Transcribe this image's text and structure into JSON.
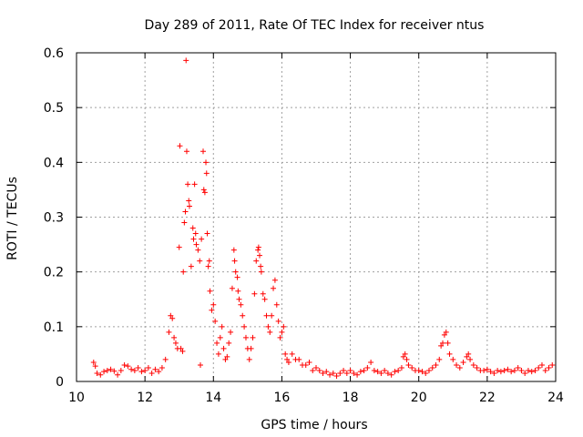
{
  "chart_data": {
    "type": "scatter",
    "title": "Day 289 of 2011, Rate Of TEC Index for receiver ntus",
    "xlabel": "GPS time / hours",
    "ylabel": "ROTI / TECUs",
    "xlim": [
      10,
      24
    ],
    "ylim": [
      0,
      0.6
    ],
    "xticks": [
      10,
      12,
      14,
      16,
      18,
      20,
      22,
      24
    ],
    "yticks": [
      0,
      0.1,
      0.2,
      0.3,
      0.4,
      0.5,
      0.6
    ],
    "xtick_labels": [
      "10",
      "12",
      "14",
      "16",
      "18",
      "20",
      "22",
      "24"
    ],
    "ytick_labels": [
      "0",
      "0.1",
      "0.2",
      "0.3",
      "0.4",
      "0.5",
      "0.6"
    ],
    "grid": true,
    "marker": "+",
    "color": "#ff0000",
    "series": [
      {
        "name": "ROTI",
        "points": [
          [
            10.5,
            0.035
          ],
          [
            10.55,
            0.028
          ],
          [
            10.6,
            0.015
          ],
          [
            10.7,
            0.012
          ],
          [
            10.8,
            0.018
          ],
          [
            10.9,
            0.02
          ],
          [
            11.0,
            0.022
          ],
          [
            11.1,
            0.019
          ],
          [
            11.2,
            0.012
          ],
          [
            11.3,
            0.02
          ],
          [
            11.4,
            0.03
          ],
          [
            11.5,
            0.028
          ],
          [
            11.6,
            0.022
          ],
          [
            11.7,
            0.02
          ],
          [
            11.8,
            0.025
          ],
          [
            11.9,
            0.018
          ],
          [
            12.0,
            0.02
          ],
          [
            12.1,
            0.025
          ],
          [
            12.2,
            0.015
          ],
          [
            12.3,
            0.022
          ],
          [
            12.4,
            0.018
          ],
          [
            12.5,
            0.025
          ],
          [
            12.6,
            0.04
          ],
          [
            12.7,
            0.09
          ],
          [
            12.75,
            0.12
          ],
          [
            12.8,
            0.115
          ],
          [
            12.85,
            0.08
          ],
          [
            12.9,
            0.07
          ],
          [
            12.95,
            0.06
          ],
          [
            13.0,
            0.245
          ],
          [
            13.02,
            0.43
          ],
          [
            13.05,
            0.06
          ],
          [
            13.1,
            0.055
          ],
          [
            13.12,
            0.2
          ],
          [
            13.15,
            0.29
          ],
          [
            13.18,
            0.31
          ],
          [
            13.2,
            0.586
          ],
          [
            13.22,
            0.42
          ],
          [
            13.25,
            0.36
          ],
          [
            13.28,
            0.33
          ],
          [
            13.3,
            0.32
          ],
          [
            13.35,
            0.21
          ],
          [
            13.4,
            0.28
          ],
          [
            13.42,
            0.26
          ],
          [
            13.45,
            0.36
          ],
          [
            13.48,
            0.27
          ],
          [
            13.5,
            0.25
          ],
          [
            13.55,
            0.24
          ],
          [
            13.6,
            0.22
          ],
          [
            13.62,
            0.03
          ],
          [
            13.65,
            0.26
          ],
          [
            13.7,
            0.42
          ],
          [
            13.72,
            0.35
          ],
          [
            13.75,
            0.345
          ],
          [
            13.78,
            0.4
          ],
          [
            13.8,
            0.38
          ],
          [
            13.82,
            0.27
          ],
          [
            13.85,
            0.21
          ],
          [
            13.88,
            0.22
          ],
          [
            13.9,
            0.165
          ],
          [
            13.95,
            0.13
          ],
          [
            14.0,
            0.14
          ],
          [
            14.05,
            0.11
          ],
          [
            14.1,
            0.07
          ],
          [
            14.15,
            0.05
          ],
          [
            14.2,
            0.08
          ],
          [
            14.25,
            0.1
          ],
          [
            14.3,
            0.06
          ],
          [
            14.35,
            0.04
          ],
          [
            14.4,
            0.045
          ],
          [
            14.45,
            0.07
          ],
          [
            14.5,
            0.09
          ],
          [
            14.55,
            0.17
          ],
          [
            14.6,
            0.24
          ],
          [
            14.62,
            0.22
          ],
          [
            14.65,
            0.2
          ],
          [
            14.7,
            0.19
          ],
          [
            14.72,
            0.165
          ],
          [
            14.75,
            0.15
          ],
          [
            14.8,
            0.14
          ],
          [
            14.85,
            0.12
          ],
          [
            14.9,
            0.1
          ],
          [
            14.95,
            0.08
          ],
          [
            15.0,
            0.06
          ],
          [
            15.05,
            0.04
          ],
          [
            15.1,
            0.06
          ],
          [
            15.15,
            0.08
          ],
          [
            15.2,
            0.16
          ],
          [
            15.25,
            0.22
          ],
          [
            15.3,
            0.24
          ],
          [
            15.32,
            0.245
          ],
          [
            15.35,
            0.23
          ],
          [
            15.38,
            0.21
          ],
          [
            15.4,
            0.2
          ],
          [
            15.45,
            0.16
          ],
          [
            15.5,
            0.15
          ],
          [
            15.55,
            0.12
          ],
          [
            15.6,
            0.1
          ],
          [
            15.65,
            0.09
          ],
          [
            15.7,
            0.12
          ],
          [
            15.75,
            0.17
          ],
          [
            15.8,
            0.185
          ],
          [
            15.85,
            0.14
          ],
          [
            15.9,
            0.11
          ],
          [
            15.95,
            0.08
          ],
          [
            16.0,
            0.09
          ],
          [
            16.05,
            0.1
          ],
          [
            16.1,
            0.05
          ],
          [
            16.15,
            0.04
          ],
          [
            16.2,
            0.035
          ],
          [
            16.3,
            0.05
          ],
          [
            16.4,
            0.04
          ],
          [
            16.5,
            0.04
          ],
          [
            16.6,
            0.03
          ],
          [
            16.7,
            0.03
          ],
          [
            16.8,
            0.035
          ],
          [
            16.9,
            0.02
          ],
          [
            17.0,
            0.025
          ],
          [
            17.1,
            0.02
          ],
          [
            17.2,
            0.015
          ],
          [
            17.3,
            0.018
          ],
          [
            17.4,
            0.012
          ],
          [
            17.5,
            0.015
          ],
          [
            17.6,
            0.01
          ],
          [
            17.7,
            0.015
          ],
          [
            17.8,
            0.02
          ],
          [
            17.9,
            0.015
          ],
          [
            18.0,
            0.02
          ],
          [
            18.1,
            0.015
          ],
          [
            18.2,
            0.012
          ],
          [
            18.3,
            0.018
          ],
          [
            18.4,
            0.02
          ],
          [
            18.5,
            0.025
          ],
          [
            18.6,
            0.035
          ],
          [
            18.7,
            0.02
          ],
          [
            18.8,
            0.018
          ],
          [
            18.9,
            0.015
          ],
          [
            19.0,
            0.02
          ],
          [
            19.1,
            0.015
          ],
          [
            19.2,
            0.012
          ],
          [
            19.3,
            0.018
          ],
          [
            19.4,
            0.02
          ],
          [
            19.5,
            0.025
          ],
          [
            19.55,
            0.045
          ],
          [
            19.6,
            0.05
          ],
          [
            19.65,
            0.04
          ],
          [
            19.7,
            0.03
          ],
          [
            19.8,
            0.025
          ],
          [
            19.9,
            0.02
          ],
          [
            20.0,
            0.02
          ],
          [
            20.1,
            0.018
          ],
          [
            20.2,
            0.015
          ],
          [
            20.3,
            0.02
          ],
          [
            20.4,
            0.025
          ],
          [
            20.5,
            0.03
          ],
          [
            20.6,
            0.04
          ],
          [
            20.65,
            0.065
          ],
          [
            20.7,
            0.07
          ],
          [
            20.75,
            0.085
          ],
          [
            20.8,
            0.09
          ],
          [
            20.85,
            0.07
          ],
          [
            20.9,
            0.05
          ],
          [
            21.0,
            0.04
          ],
          [
            21.1,
            0.03
          ],
          [
            21.2,
            0.025
          ],
          [
            21.3,
            0.035
          ],
          [
            21.4,
            0.045
          ],
          [
            21.45,
            0.05
          ],
          [
            21.5,
            0.04
          ],
          [
            21.6,
            0.03
          ],
          [
            21.7,
            0.025
          ],
          [
            21.8,
            0.02
          ],
          [
            21.9,
            0.02
          ],
          [
            22.0,
            0.022
          ],
          [
            22.1,
            0.018
          ],
          [
            22.2,
            0.015
          ],
          [
            22.3,
            0.02
          ],
          [
            22.4,
            0.018
          ],
          [
            22.5,
            0.02
          ],
          [
            22.6,
            0.022
          ],
          [
            22.7,
            0.018
          ],
          [
            22.8,
            0.02
          ],
          [
            22.9,
            0.025
          ],
          [
            23.0,
            0.02
          ],
          [
            23.1,
            0.015
          ],
          [
            23.2,
            0.02
          ],
          [
            23.3,
            0.018
          ],
          [
            23.4,
            0.02
          ],
          [
            23.5,
            0.025
          ],
          [
            23.6,
            0.03
          ],
          [
            23.7,
            0.02
          ],
          [
            23.8,
            0.025
          ],
          [
            23.9,
            0.03
          ]
        ]
      }
    ]
  }
}
